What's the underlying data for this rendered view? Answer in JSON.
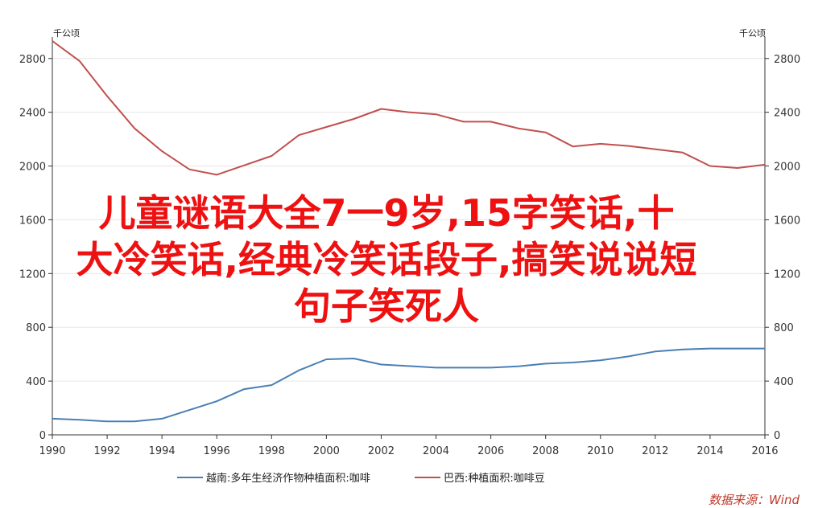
{
  "chart_data": {
    "type": "line",
    "x": [
      1990,
      1991,
      1992,
      1993,
      1994,
      1995,
      1996,
      1997,
      1998,
      1999,
      2000,
      2001,
      2002,
      2003,
      2004,
      2005,
      2006,
      2007,
      2008,
      2009,
      2010,
      2011,
      2012,
      2013,
      2014,
      2015,
      2016
    ],
    "series": [
      {
        "name": "越南:多年生经济作物种植面积:咖啡",
        "color": "#4a7fb5",
        "axis": "left",
        "values": [
          120,
          112,
          100,
          100,
          120,
          185,
          250,
          340,
          370,
          480,
          562,
          568,
          523,
          512,
          500,
          500,
          500,
          510,
          530,
          538,
          555,
          583,
          620,
          635,
          642,
          642,
          642
        ]
      },
      {
        "name": "巴西:种植面积:咖啡豆",
        "color": "#c0504d",
        "axis": "right",
        "values": [
          2930,
          2780,
          2520,
          2280,
          2110,
          1975,
          1935,
          2005,
          2075,
          2230,
          2290,
          2350,
          2425,
          2400,
          2385,
          2330,
          2330,
          2280,
          2250,
          2145,
          2165,
          2150,
          2125,
          2100,
          2000,
          1985,
          2010
        ]
      }
    ],
    "y_left": {
      "unit": "千公顷",
      "lim": [
        0,
        2960
      ],
      "ticks": [
        0,
        400,
        800,
        1200,
        1600,
        2000,
        2400,
        2800
      ]
    },
    "y_right": {
      "unit": "千公顷",
      "lim": [
        0,
        2960
      ],
      "ticks": [
        0,
        400,
        800,
        1200,
        1600,
        2000,
        2400,
        2800
      ]
    },
    "x_ticks": [
      1990,
      1992,
      1994,
      1996,
      1998,
      2000,
      2002,
      2004,
      2006,
      2008,
      2010,
      2012,
      2014,
      2016
    ],
    "grid": "horizontal",
    "legend_placement": "bottom-center",
    "source": "数据来源：Wind"
  },
  "overlay": {
    "title_lines": [
      "儿童谜语大全7一9岁,15字笑话,十",
      "大冷笑话,经典冷笑话段子,搞笑说说短",
      "句子笑死人"
    ]
  }
}
